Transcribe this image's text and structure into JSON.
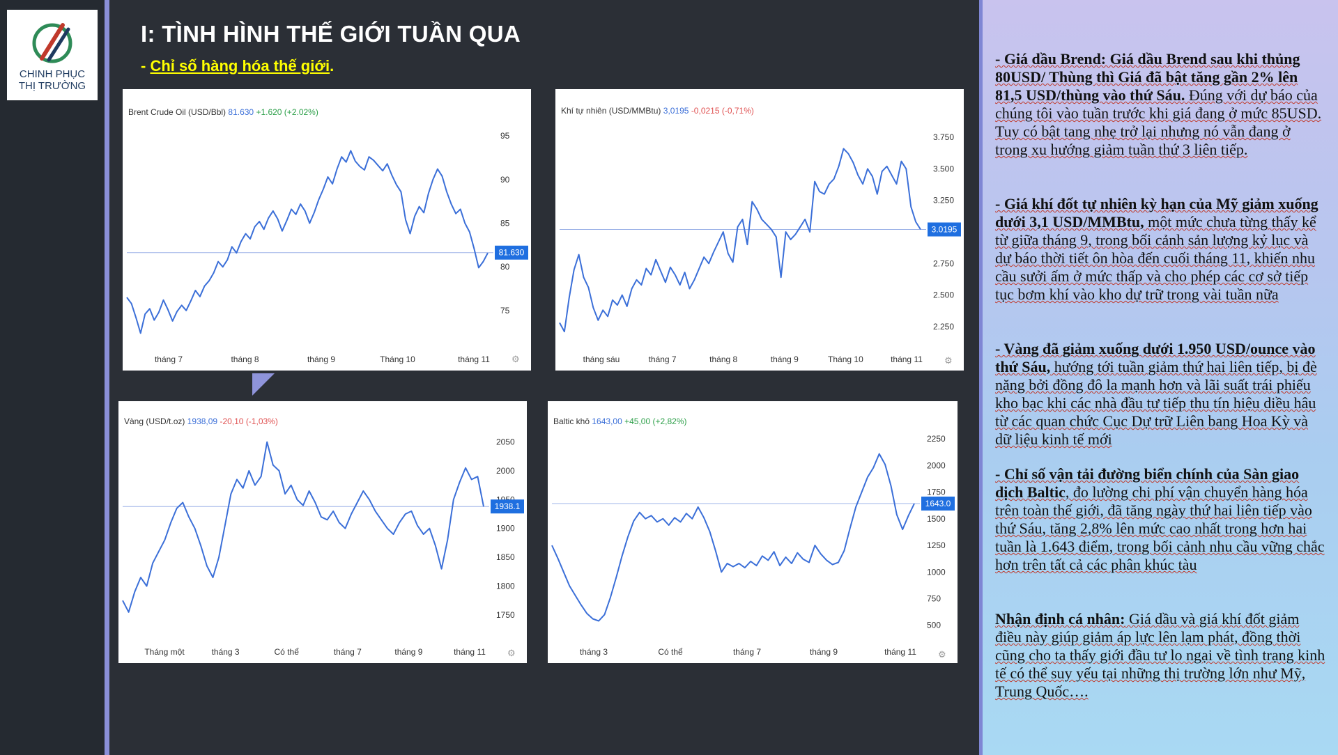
{
  "logo": {
    "line1": "CHINH PHỤC",
    "line2": "THỊ TRƯỜNG"
  },
  "header": {
    "title": "I: TÌNH HÌNH THẾ GIỚI TUẦN QUA",
    "subtitle_prefix": "- ",
    "subtitle": "Chỉ số hàng hóa thế giới",
    "subtitle_suffix": "."
  },
  "colors": {
    "line": "#3b6fd8",
    "badge": "#1f6fe0",
    "positive": "#2ea04a",
    "negative": "#e05050",
    "text_accent": "#ffff00"
  },
  "chart_data": [
    {
      "type": "line",
      "name_label": "Brent Crude Oil (USD/Bbl)",
      "last_label": "81.630",
      "change_label": "+1.620 (+2.02%)",
      "badge": "81.630",
      "ylim": [
        71,
        97
      ],
      "y_ticks": [
        "95",
        "90",
        "85",
        "80",
        "75"
      ],
      "y_tick_values": [
        95,
        90,
        85,
        80,
        75
      ],
      "x_ticks": [
        "tháng 7",
        "tháng 8",
        "tháng 9",
        "Tháng 10",
        "tháng 11"
      ],
      "last_value": 81.63,
      "values": [
        76.5,
        75.8,
        74.2,
        72.4,
        74.6,
        75.2,
        73.9,
        74.8,
        76.2,
        75.1,
        73.8,
        74.9,
        75.6,
        75.0,
        76.1,
        77.3,
        76.6,
        77.8,
        78.4,
        79.3,
        80.6,
        80.0,
        80.8,
        82.3,
        81.6,
        82.9,
        83.8,
        83.2,
        84.6,
        85.2,
        84.3,
        85.6,
        86.4,
        85.5,
        84.1,
        85.3,
        86.6,
        86.0,
        87.2,
        86.4,
        85.0,
        86.2,
        87.7,
        88.9,
        90.3,
        89.5,
        91.2,
        92.6,
        92.0,
        93.3,
        92.1,
        91.5,
        91.1,
        92.6,
        92.2,
        91.6,
        91.0,
        91.8,
        90.5,
        89.4,
        88.6,
        85.4,
        83.8,
        85.8,
        86.9,
        86.2,
        88.4,
        90.0,
        91.2,
        90.4,
        88.6,
        87.2,
        86.1,
        86.6,
        85.0,
        84.0,
        82.1,
        79.9,
        80.6,
        81.6
      ]
    },
    {
      "type": "line",
      "name_label": "Khí tự nhiên (USD/MMBtu)",
      "last_label": "3,0195",
      "change_label": "-0,0215 (-0,71%)",
      "badge": "3.0195",
      "ylim": [
        2.1,
        3.9
      ],
      "y_ticks": [
        "3.750",
        "3.500",
        "3.250",
        "2.750",
        "2.500",
        "2.250"
      ],
      "y_tick_values": [
        3.75,
        3.5,
        3.25,
        2.75,
        2.5,
        2.25
      ],
      "x_ticks": [
        "tháng sáu",
        "tháng 7",
        "tháng 8",
        "tháng 9",
        "Tháng 10",
        "tháng 11"
      ],
      "last_value": 3.0195,
      "values": [
        2.28,
        2.21,
        2.48,
        2.7,
        2.82,
        2.64,
        2.56,
        2.4,
        2.3,
        2.38,
        2.33,
        2.46,
        2.42,
        2.5,
        2.41,
        2.55,
        2.62,
        2.58,
        2.71,
        2.66,
        2.78,
        2.69,
        2.6,
        2.72,
        2.66,
        2.58,
        2.68,
        2.55,
        2.62,
        2.71,
        2.8,
        2.75,
        2.84,
        2.92,
        3.0,
        2.83,
        2.76,
        3.04,
        3.1,
        2.9,
        3.24,
        3.18,
        3.1,
        3.06,
        3.02,
        2.96,
        2.64,
        3.0,
        2.94,
        2.98,
        3.04,
        3.1,
        3.0,
        3.4,
        3.32,
        3.3,
        3.38,
        3.42,
        3.52,
        3.66,
        3.62,
        3.55,
        3.45,
        3.38,
        3.5,
        3.44,
        3.3,
        3.48,
        3.52,
        3.45,
        3.38,
        3.56,
        3.5,
        3.2,
        3.08,
        3.02
      ]
    },
    {
      "type": "line",
      "name_label": "Vàng (USD/t.oz)",
      "last_label": "1938,09",
      "change_label": "-20,10 (-1,03%)",
      "badge": "1938.1",
      "ylim": [
        1710,
        2070
      ],
      "y_ticks": [
        "2050",
        "2000",
        "1950",
        "1900",
        "1850",
        "1800",
        "1750"
      ],
      "y_tick_values": [
        2050,
        2000,
        1950,
        1900,
        1850,
        1800,
        1750
      ],
      "x_ticks": [
        "Tháng một",
        "tháng 3",
        "Có thể",
        "tháng 7",
        "tháng 9",
        "tháng 11"
      ],
      "last_value": 1938.09,
      "values": [
        1775,
        1755,
        1790,
        1815,
        1800,
        1840,
        1860,
        1880,
        1910,
        1935,
        1945,
        1920,
        1900,
        1870,
        1835,
        1815,
        1850,
        1905,
        1960,
        1985,
        1970,
        2000,
        1975,
        1990,
        2050,
        2010,
        2000,
        1960,
        1975,
        1950,
        1940,
        1965,
        1945,
        1920,
        1915,
        1930,
        1910,
        1900,
        1925,
        1945,
        1965,
        1950,
        1930,
        1915,
        1900,
        1890,
        1910,
        1925,
        1930,
        1905,
        1890,
        1900,
        1870,
        1830,
        1880,
        1950,
        1980,
        2005,
        1985,
        1990,
        1938
      ]
    },
    {
      "type": "line",
      "name_label": "Baltic khô",
      "last_label": "1643,00",
      "change_label": "+45,00 (+2,82%)",
      "badge": "1643.0",
      "ylim": [
        380,
        2330
      ],
      "y_ticks": [
        "2250",
        "2000",
        "1750",
        "1500",
        "1250",
        "1000",
        "750",
        "500"
      ],
      "y_tick_values": [
        2250,
        2000,
        1750,
        1500,
        1250,
        1000,
        750,
        500
      ],
      "x_ticks": [
        "tháng 3",
        "Có thể",
        "tháng 7",
        "tháng 9",
        "tháng 11"
      ],
      "last_value": 1643,
      "values": [
        1250,
        1130,
        1000,
        870,
        780,
        690,
        610,
        560,
        540,
        600,
        760,
        950,
        1150,
        1330,
        1480,
        1560,
        1500,
        1530,
        1470,
        1500,
        1440,
        1510,
        1470,
        1550,
        1500,
        1610,
        1510,
        1380,
        1200,
        1000,
        1080,
        1050,
        1080,
        1040,
        1100,
        1060,
        1150,
        1110,
        1190,
        1060,
        1140,
        1080,
        1180,
        1120,
        1090,
        1250,
        1170,
        1110,
        1070,
        1090,
        1200,
        1410,
        1610,
        1750,
        1890,
        1980,
        2110,
        2010,
        1810,
        1540,
        1400,
        1530,
        1643
      ]
    }
  ],
  "analysis": [
    {
      "lead": "- Giá dầu Brend: Giá dầu Brend sau khi thủng 80USD/ Thùng thì Giá đã bật  tăng gần 2% lên 81,5 USD/thùng vào thứ Sáu.",
      "body": " Đúng với dự báo của chúng tôi vào tuần trước khi giá đang ở mức 85USD. Tuy có bật tang nhẹ trở lại nhưng nó vẫn đang ở trong xu hướng giảm tuần thứ 3 liên tiếp."
    },
    {
      "lead": "- Giá khí đốt tự nhiên kỳ hạn của Mỹ giảm xuống dưới 3,1 USD/MMBtu,",
      "body": " một mức chưa từng thấy kể từ giữa tháng 9, trong bối cảnh sản lượng kỷ lục và dự báo thời tiết ôn hòa đến cuối tháng 11, khiến nhu cầu sưởi ấm ở mức thấp và cho phép các cơ sở tiếp tục bơm khí vào kho dự trữ trong vài tuần nữa"
    },
    {
      "lead": "- Vàng đã giảm xuống dưới 1.950 USD/ounce vào thứ Sáu,",
      "body": " hướng tới tuần giảm thứ hai liên tiếp, bị đè nặng bởi đồng đô la mạnh hơn và lãi suất trái phiếu kho bạc khi các nhà đầu tư tiếp thu tín hiệu diều hâu từ các quan chức Cục Dự trữ Liên bang Hoa Kỳ và dữ liệu kinh tế mới"
    },
    {
      "lead": "- Chỉ số vận tải đường biển chính của Sàn giao dịch Baltic",
      "body": ", đo lường chi phí vận chuyển hàng hóa trên toàn thế giới, đã tăng ngày thứ hai liên tiếp vào thứ Sáu, tăng 2,8% lên mức cao nhất trong hơn hai tuần là 1.643 điểm, trong bối cảnh nhu cầu vững chắc hơn trên tất cả các phân khúc tàu"
    },
    {
      "lead": "Nhận định cá nhân:",
      "body": " Giá dầu và giá khí đốt giảm điều này giúp giảm áp lực lên lạm phát, đồng thời cũng cho ta thấy giới đầu tư lo ngại về tình trạng kinh tế có thể suy yếu tại những thị trường lớn như Mỹ, Trung Quốc…."
    }
  ]
}
